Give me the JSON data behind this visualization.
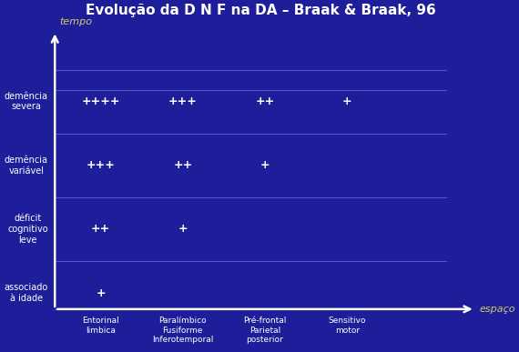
{
  "title": "Evolução da D N F na DA – Braak & Braak, 96",
  "background_color": "#1e1e9a",
  "title_color": "#ffffff",
  "axis_color": "#ffffff",
  "label_color": "#ffffff",
  "tempo_label_color": "#cccc66",
  "espaco_label_color": "#cccc66",
  "plus_color": "#ffffff",
  "grid_color": "#5555cc",
  "y_labels": [
    "associado\nà idade",
    "déficit\ncognitivo\nleve",
    "demência\nvariável",
    "demência\nsevera"
  ],
  "x_labels": [
    "Entorinal\nlimbica",
    "Paralímbico\nFusiforme\nInferotemporal",
    "Pré-frontal\nParietal\nposterior",
    "Sensitivo\nmotor"
  ],
  "cells": [
    {
      "row": 0,
      "col": 0,
      "text": "+"
    },
    {
      "row": 1,
      "col": 0,
      "text": "++"
    },
    {
      "row": 1,
      "col": 1,
      "text": "+"
    },
    {
      "row": 2,
      "col": 0,
      "text": "+++"
    },
    {
      "row": 2,
      "col": 1,
      "text": "++"
    },
    {
      "row": 2,
      "col": 2,
      "text": "+"
    },
    {
      "row": 3,
      "col": 0,
      "text": "++++"
    },
    {
      "row": 3,
      "col": 1,
      "text": "+++"
    },
    {
      "row": 3,
      "col": 2,
      "text": "++"
    },
    {
      "row": 3,
      "col": 3,
      "text": "+"
    }
  ],
  "xlabel": "espaço",
  "ylabel": "tempo",
  "n_rows": 4,
  "n_cols": 4,
  "cell_fontsize": 9,
  "label_fontsize": 7,
  "title_fontsize": 11,
  "axis_label_fontsize": 8
}
